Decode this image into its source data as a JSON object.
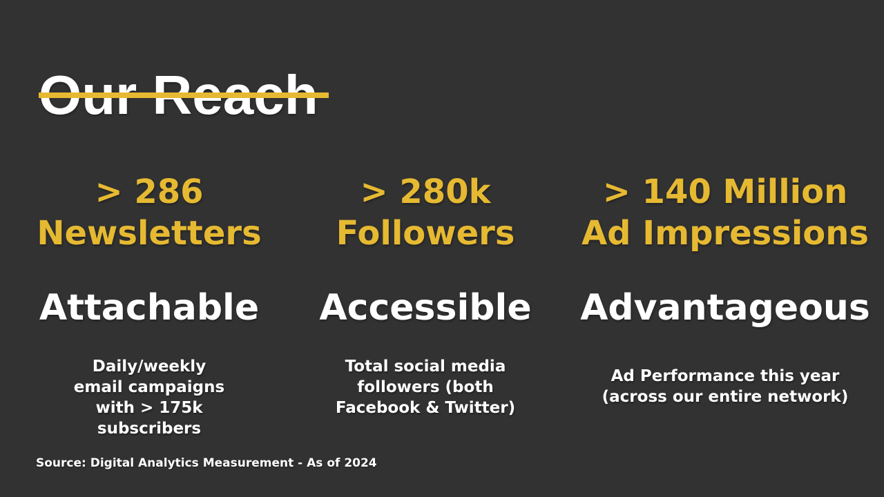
{
  "slide": {
    "title": "Our Reach",
    "colors": {
      "background": "#323232",
      "accent": "#E6B932",
      "text": "#FFFFFF"
    },
    "columns": [
      {
        "stat_line1": "> 286",
        "stat_line2": "Newsletters",
        "keyword": "Attachable",
        "description_lines": [
          "Daily/weekly",
          "email campaigns",
          "with > 175k",
          "subscribers"
        ]
      },
      {
        "stat_line1": "> 280k",
        "stat_line2": "Followers",
        "keyword": "Accessible",
        "description_lines": [
          "Total social media",
          "followers (both",
          "Facebook & Twitter)"
        ]
      },
      {
        "stat_line1": "> 140 Million",
        "stat_line2": "Ad Impressions",
        "keyword": "Advantageous",
        "description_lines": [
          "Ad Performance this year",
          "(across our entire network)"
        ]
      }
    ],
    "source": "Source: Digital Analytics Measurement - As of 2024"
  }
}
